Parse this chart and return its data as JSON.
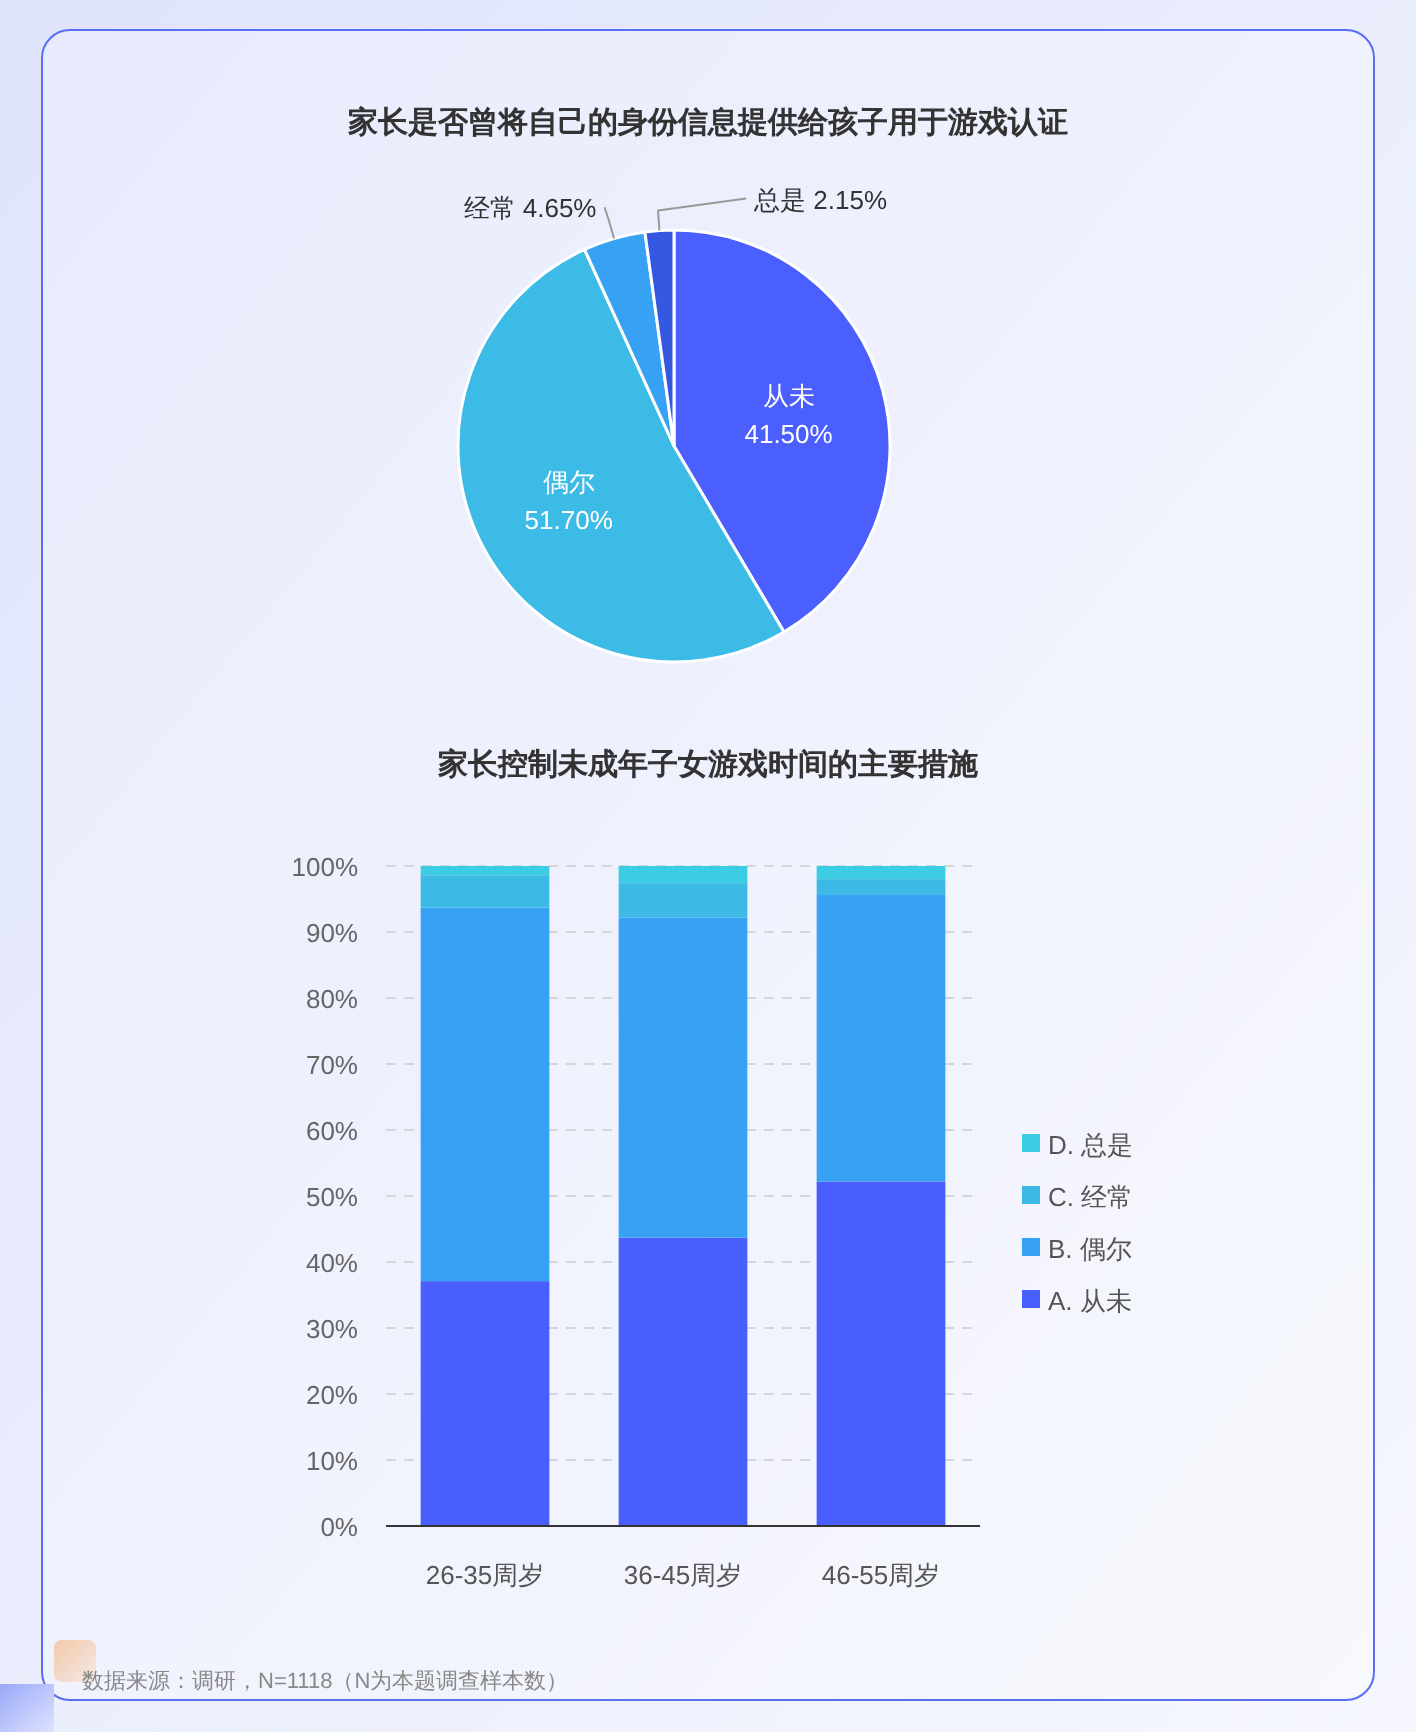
{
  "chart_data": [
    {
      "type": "pie",
      "title": "家长是否曾将自己的身份信息提供给孩子用于游戏认证",
      "categories": [
        "从未",
        "偶尔",
        "经常",
        "总是"
      ],
      "values": [
        41.5,
        51.7,
        4.65,
        2.15
      ],
      "colors": [
        "#4a5ffe",
        "#3bbbe6",
        "#37a2f4",
        "#3459e0"
      ],
      "value_labels": [
        "41.50%",
        "51.70%",
        "4.65%",
        "2.15%"
      ]
    },
    {
      "type": "bar",
      "title": "家长控制未成年子女游戏时间的主要措施",
      "categories": [
        "26-35周岁",
        "36-45周岁",
        "46-55周岁"
      ],
      "stacked": true,
      "series": [
        {
          "name": "A. 从未",
          "color": "#485efe",
          "values": [
            37.1,
            43.7,
            52.2
          ]
        },
        {
          "name": "B. 偶尔",
          "color": "#37a2f4",
          "values": [
            56.6,
            48.5,
            43.4
          ]
        },
        {
          "name": "C. 经常",
          "color": "#3db9e6",
          "values": [
            4.9,
            5.2,
            2.4
          ]
        },
        {
          "name": "D. 总是",
          "color": "#3ccde3",
          "values": [
            1.4,
            2.6,
            2.0
          ]
        }
      ],
      "ylim": [
        0,
        100
      ],
      "yticks": [
        {
          "value": 0,
          "label": "0%"
        },
        {
          "value": 10,
          "label": "10%"
        },
        {
          "value": 20,
          "label": "20%"
        },
        {
          "value": 30,
          "label": "30%"
        },
        {
          "value": 40,
          "label": "40%"
        },
        {
          "value": 50,
          "label": "50%"
        },
        {
          "value": 60,
          "label": "60%"
        },
        {
          "value": 70,
          "label": "70%"
        },
        {
          "value": 80,
          "label": "80%"
        },
        {
          "value": 90,
          "label": "90%"
        },
        {
          "value": 100,
          "label": "100%"
        }
      ],
      "grid": "y",
      "legend": "right",
      "annotations": [
        "数据来源：调研，N=1118（N为本题调查样本数）"
      ]
    }
  ]
}
